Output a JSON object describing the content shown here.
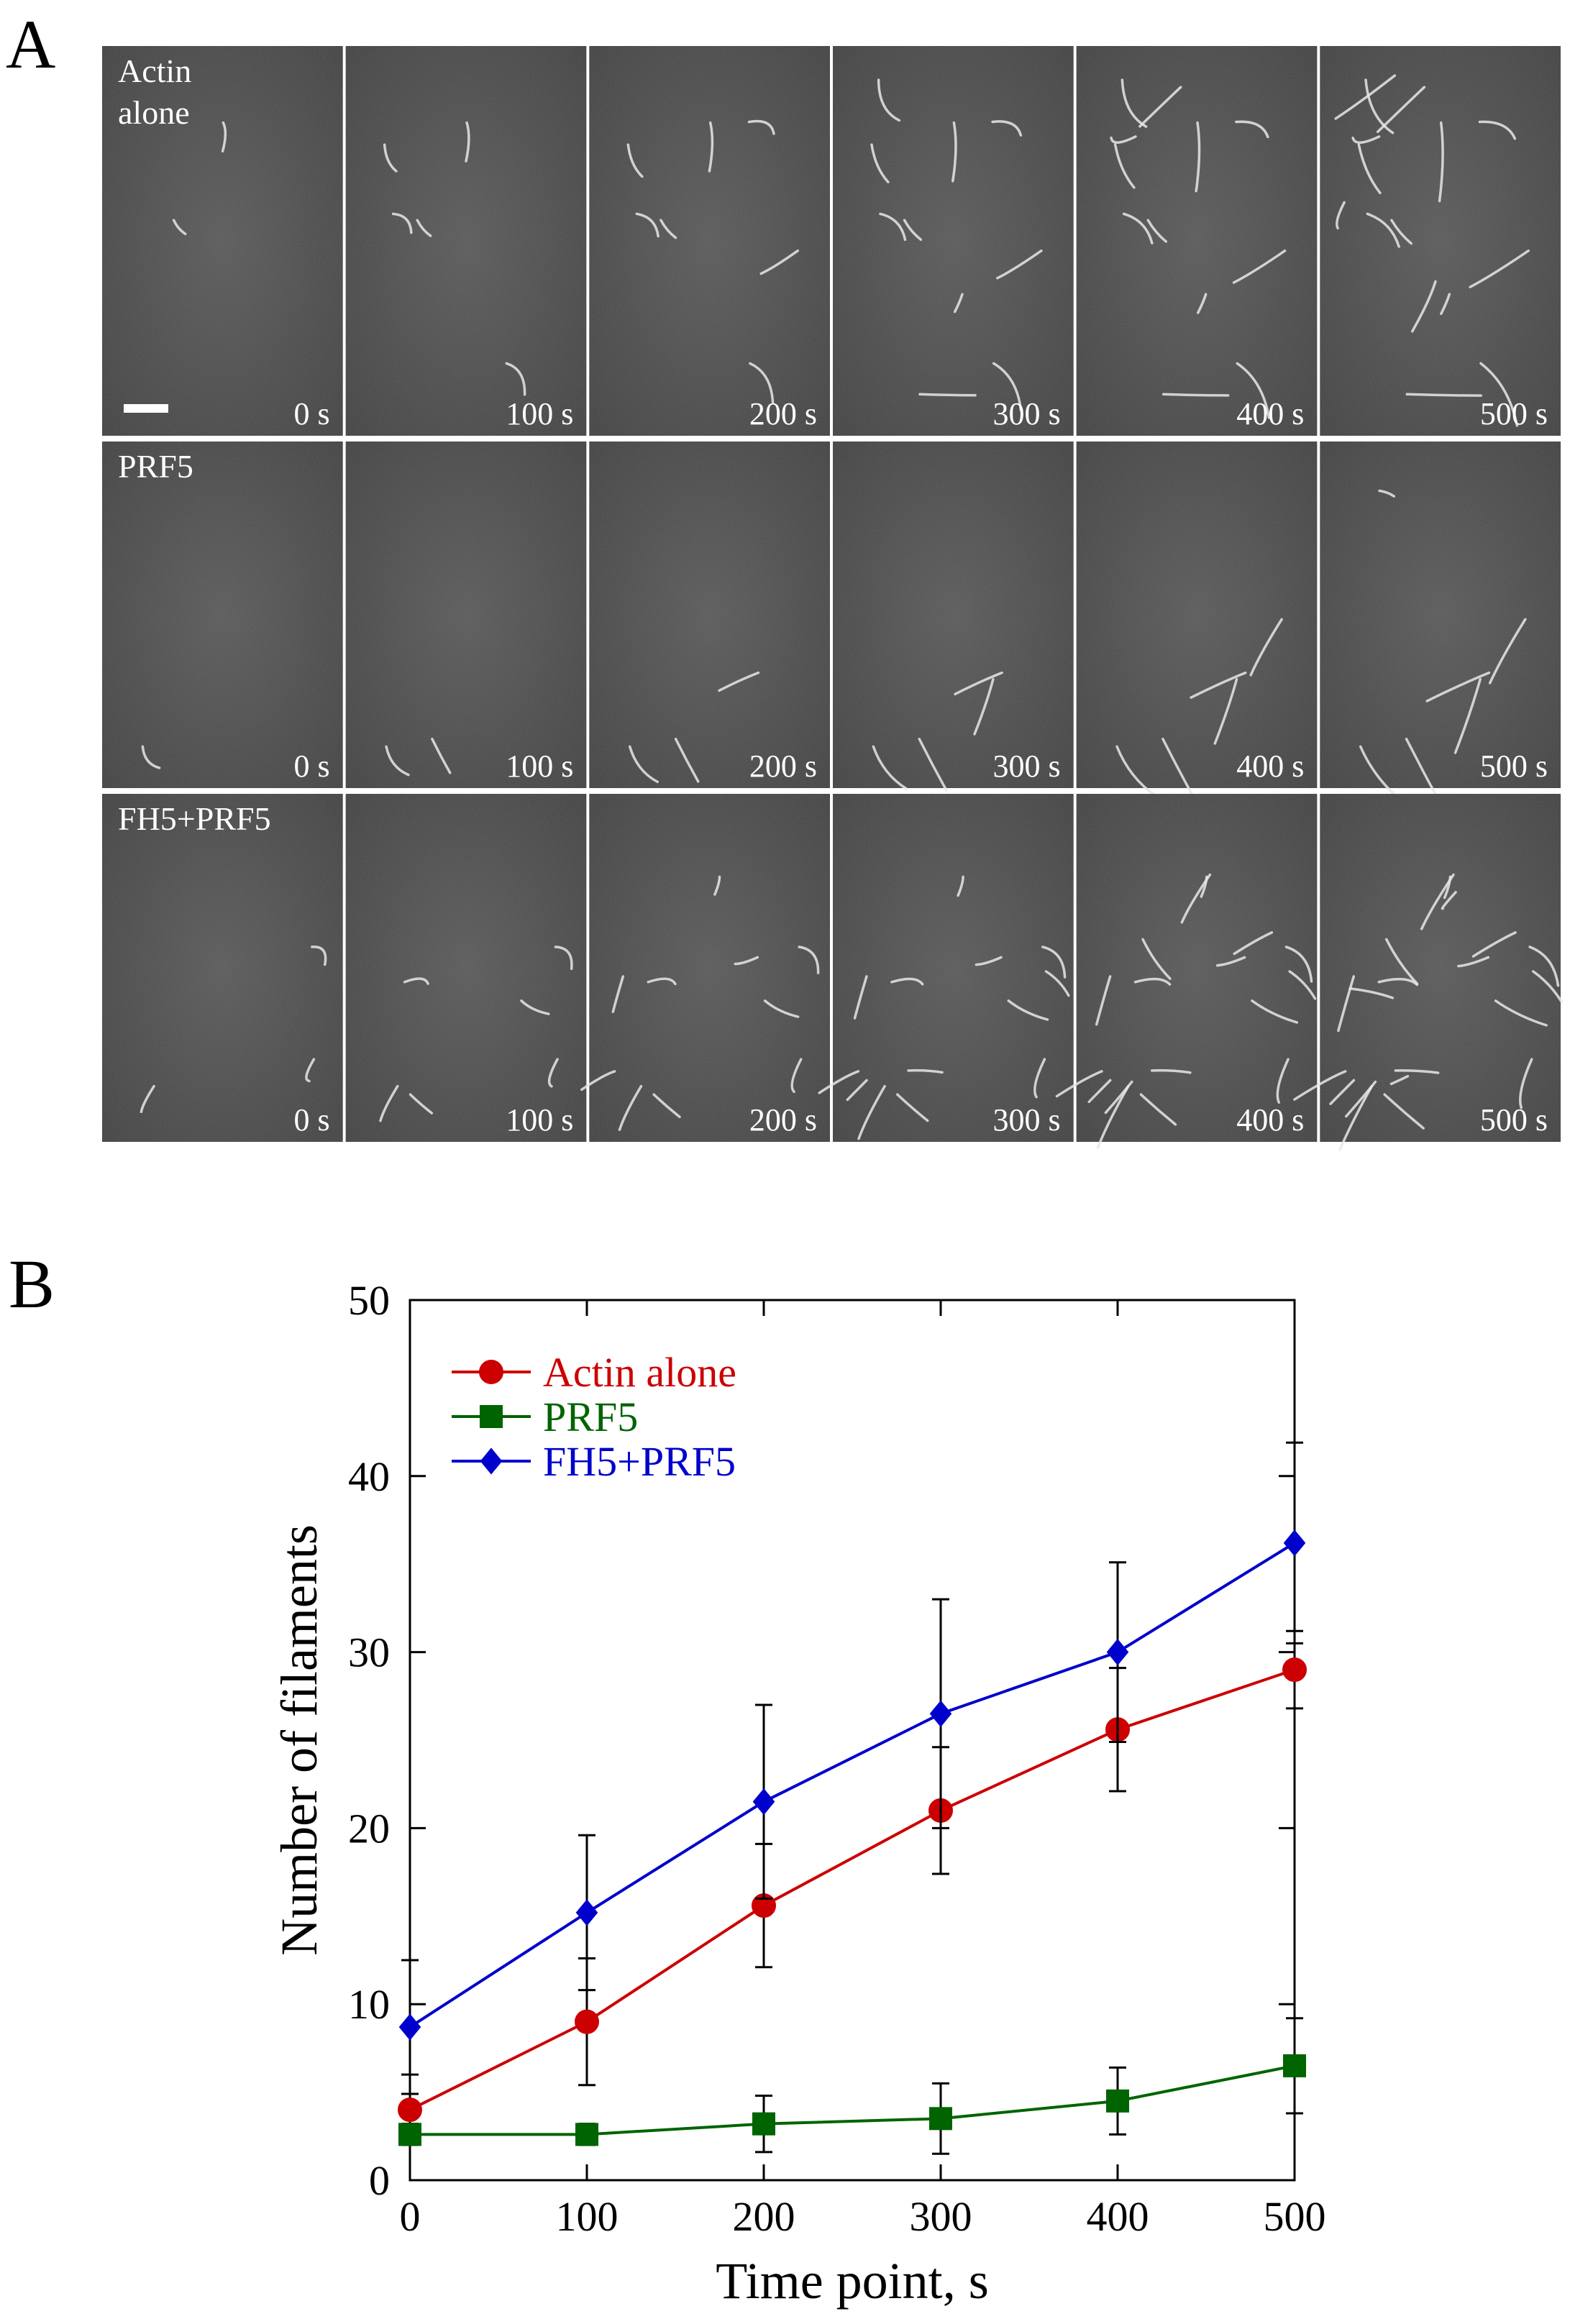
{
  "panels": {
    "a_letter": "A",
    "b_letter": "B"
  },
  "micrographs": {
    "rows": [
      {
        "label_lines": [
          "Actin",
          "alone"
        ]
      },
      {
        "label_lines": [
          "PRF5"
        ]
      },
      {
        "label_lines": [
          "FH5+PRF5"
        ]
      }
    ],
    "time_labels": [
      "0 s",
      "100 s",
      "200 s",
      "300 s",
      "400 s",
      "500 s"
    ],
    "has_scale_bar": true
  },
  "chart_data": {
    "type": "line",
    "title": "",
    "xlabel": "Time point, s",
    "ylabel": "Number of filaments",
    "xlim": [
      0,
      500
    ],
    "ylim": [
      0,
      50
    ],
    "xticks": [
      0,
      100,
      200,
      300,
      400,
      500
    ],
    "yticks": [
      0,
      10,
      20,
      30,
      40,
      50
    ],
    "grid": false,
    "legend_position": "top-left",
    "x": [
      0,
      100,
      200,
      300,
      400,
      500
    ],
    "series": [
      {
        "name": "Actin alone",
        "color": "#cc0000",
        "marker": "circle",
        "values": [
          4.0,
          9.0,
          15.6,
          21.0,
          25.6,
          29.0
        ],
        "errors": [
          2.0,
          3.6,
          3.5,
          3.6,
          3.5,
          2.2
        ]
      },
      {
        "name": "PRF5",
        "color": "#006400",
        "marker": "square",
        "values": [
          2.6,
          2.6,
          3.2,
          3.5,
          4.5,
          6.5
        ],
        "errors": [
          0.6,
          0.6,
          1.6,
          2.0,
          1.9,
          2.7
        ]
      },
      {
        "name": "FH5+PRF5",
        "color": "#0000cc",
        "marker": "diamond",
        "values": [
          8.7,
          15.2,
          21.5,
          26.5,
          30.0,
          36.2
        ],
        "errors": [
          3.8,
          4.4,
          5.5,
          6.5,
          5.1,
          5.7
        ]
      }
    ]
  }
}
